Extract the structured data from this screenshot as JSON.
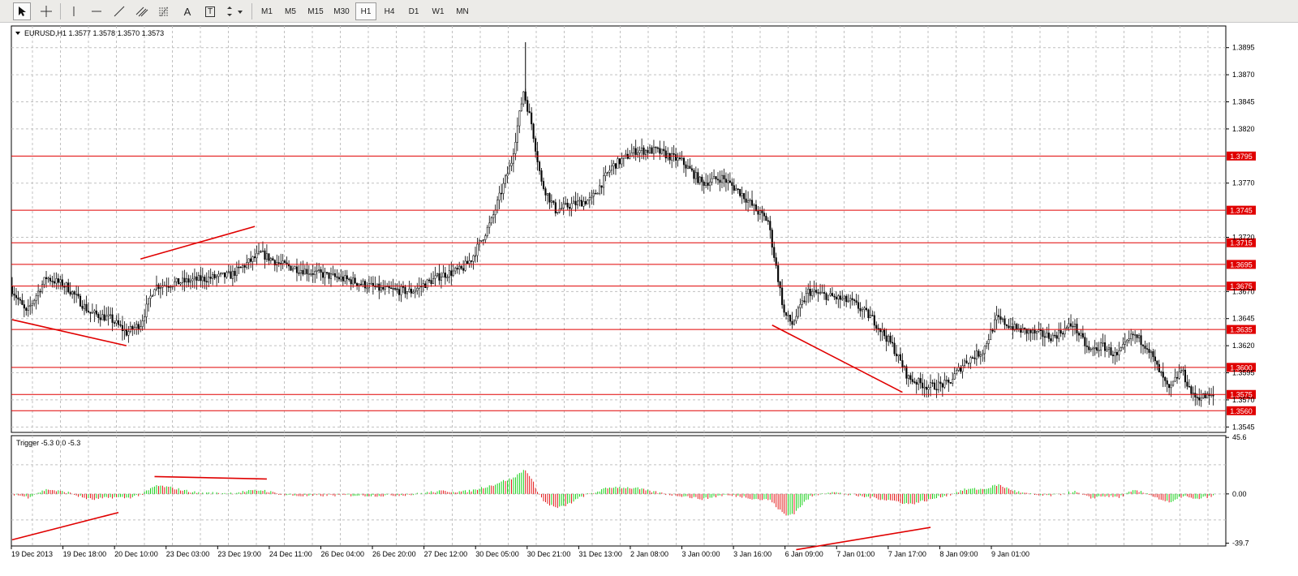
{
  "toolbar": {
    "tools": [
      {
        "name": "cursor-tool",
        "icon": "arrow-cursor-icon",
        "active": true
      },
      {
        "name": "crosshair-tool",
        "icon": "crosshair-icon",
        "active": false
      },
      {
        "name": "vertical-line-tool",
        "icon": "vertical-line-icon",
        "active": false
      },
      {
        "name": "horizontal-line-tool",
        "icon": "horizontal-line-icon",
        "active": false
      },
      {
        "name": "trendline-tool",
        "icon": "trendline-icon",
        "active": false
      },
      {
        "name": "equidistant-channel-tool",
        "icon": "channel-icon",
        "active": false
      },
      {
        "name": "fibonacci-tool",
        "icon": "fibonacci-icon",
        "active": false
      },
      {
        "name": "text-tool",
        "icon": "text-A-icon",
        "label": "A",
        "active": false
      },
      {
        "name": "text-label-tool",
        "icon": "text-label-icon",
        "label": "T",
        "active": false
      },
      {
        "name": "arrows-tool",
        "icon": "arrows-dropdown-icon",
        "active": false
      }
    ],
    "timeframes": [
      {
        "label": "M1",
        "active": false
      },
      {
        "label": "M5",
        "active": false
      },
      {
        "label": "M15",
        "active": false
      },
      {
        "label": "M30",
        "active": false
      },
      {
        "label": "H1",
        "active": true
      },
      {
        "label": "H4",
        "active": false
      },
      {
        "label": "D1",
        "active": false
      },
      {
        "label": "W1",
        "active": false
      },
      {
        "label": "MN",
        "active": false
      }
    ]
  },
  "chart": {
    "header": "EURUSD,H1  1.3577 1.3578 1.3570 1.3573",
    "colors": {
      "up": "#00b000",
      "down": "#d00000",
      "level": "#e00000",
      "grid": "#c0c0c0"
    },
    "price_ticks": [
      "1.3895",
      "1.3870",
      "1.3845",
      "1.3820",
      "1.3770",
      "1.3720",
      "1.3670",
      "1.3645",
      "1.3620",
      "1.3595",
      "1.3570",
      "1.3545"
    ],
    "price_range": [
      1.354,
      1.3915
    ],
    "levels": [
      "1.3795",
      "1.3745",
      "1.3715",
      "1.3695",
      "1.3675",
      "1.3635",
      "1.3600",
      "1.3575",
      "1.3560"
    ],
    "time_labels": [
      "19 Dec 2013",
      "19 Dec 18:00",
      "20 Dec 10:00",
      "23 Dec 03:00",
      "23 Dec 19:00",
      "24 Dec 11:00",
      "26 Dec 04:00",
      "26 Dec 20:00",
      "27 Dec 12:00",
      "30 Dec 05:00",
      "30 Dec 21:00",
      "31 Dec 13:00",
      "2 Jan 08:00",
      "3 Jan 00:00",
      "3 Jan 16:00",
      "6 Jan 09:00",
      "7 Jan 01:00",
      "7 Jan 17:00",
      "8 Jan 09:00",
      "9 Jan 01:00"
    ]
  },
  "indicator": {
    "header": "Trigger -5.3 0.0 -5.3",
    "ticks": [
      "45.6",
      "0.00",
      "-39.7"
    ],
    "range": [
      -42,
      47
    ]
  },
  "chart_data": {
    "type": "candlestick",
    "xlabel": "",
    "ylabel": "",
    "ylim": [
      1.354,
      1.3915
    ],
    "grid": true,
    "anchors": [
      [
        0,
        1.3675
      ],
      [
        8,
        1.365
      ],
      [
        18,
        1.3683
      ],
      [
        28,
        1.3675
      ],
      [
        40,
        1.365
      ],
      [
        50,
        1.3645
      ],
      [
        58,
        1.3632
      ],
      [
        65,
        1.364
      ],
      [
        72,
        1.3675
      ],
      [
        90,
        1.368
      ],
      [
        110,
        1.3685
      ],
      [
        125,
        1.3705
      ],
      [
        135,
        1.3695
      ],
      [
        150,
        1.3688
      ],
      [
        170,
        1.368
      ],
      [
        185,
        1.3672
      ],
      [
        200,
        1.367
      ],
      [
        215,
        1.3685
      ],
      [
        225,
        1.369
      ],
      [
        230,
        1.37
      ],
      [
        240,
        1.3735
      ],
      [
        250,
        1.379
      ],
      [
        256,
        1.3855
      ],
      [
        260,
        1.3825
      ],
      [
        265,
        1.377
      ],
      [
        272,
        1.3745
      ],
      [
        280,
        1.375
      ],
      [
        290,
        1.3755
      ],
      [
        300,
        1.3785
      ],
      [
        312,
        1.38
      ],
      [
        322,
        1.38
      ],
      [
        335,
        1.379
      ],
      [
        345,
        1.377
      ],
      [
        355,
        1.3775
      ],
      [
        365,
        1.376
      ],
      [
        372,
        1.3745
      ],
      [
        378,
        1.3735
      ],
      [
        386,
        1.365
      ],
      [
        390,
        1.364
      ],
      [
        398,
        1.367
      ],
      [
        410,
        1.3665
      ],
      [
        420,
        1.366
      ],
      [
        430,
        1.3645
      ],
      [
        440,
        1.362
      ],
      [
        448,
        1.359
      ],
      [
        458,
        1.3582
      ],
      [
        468,
        1.3585
      ],
      [
        476,
        1.3605
      ],
      [
        485,
        1.3615
      ],
      [
        492,
        1.3645
      ],
      [
        502,
        1.3635
      ],
      [
        520,
        1.3628
      ],
      [
        530,
        1.364
      ],
      [
        538,
        1.3615
      ],
      [
        545,
        1.362
      ],
      [
        552,
        1.361
      ],
      [
        560,
        1.363
      ],
      [
        567,
        1.362
      ],
      [
        572,
        1.36
      ],
      [
        578,
        1.3578
      ],
      [
        584,
        1.3598
      ],
      [
        590,
        1.3573
      ],
      [
        599,
        1.3573
      ]
    ],
    "trendlines": [
      {
        "price": [
          [
            0,
            1.3644
          ],
          [
            57,
            1.362
          ]
        ]
      },
      {
        "price": [
          [
            64,
            1.37
          ],
          [
            121,
            1.373
          ]
        ]
      },
      {
        "price": [
          [
            379,
            1.3639
          ],
          [
            444,
            1.3577
          ]
        ]
      },
      {
        "indicator": [
          [
            0,
            -37
          ],
          [
            53,
            -15
          ]
        ]
      },
      {
        "indicator": [
          [
            71,
            14
          ],
          [
            127,
            12
          ]
        ]
      },
      {
        "indicator": [
          [
            391,
            -45
          ],
          [
            458,
            -27
          ]
        ]
      }
    ]
  }
}
